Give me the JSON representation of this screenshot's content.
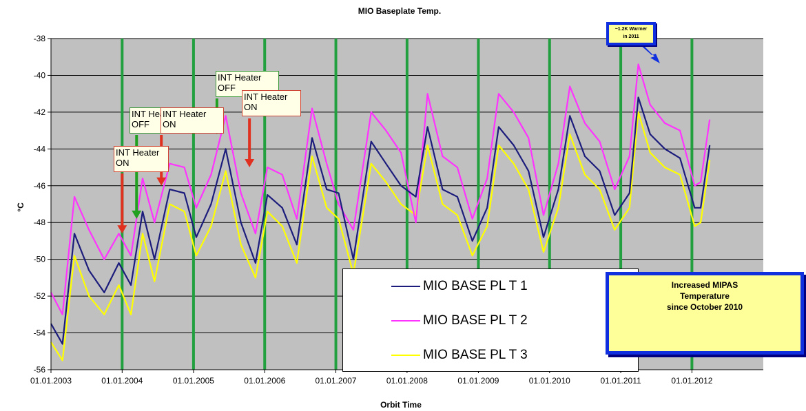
{
  "chart_data": {
    "type": "line",
    "title": "MIO Baseplate Temp.",
    "xlabel": "Orbit Time",
    "ylabel": "°C",
    "ylim": [
      -56,
      -38
    ],
    "yticks": [
      -38,
      -40,
      -42,
      -44,
      -46,
      -48,
      -50,
      -52,
      -54,
      -56
    ],
    "xticks": [
      "01.01.2003",
      "01.01.2004",
      "01.01.2005",
      "01.01.2006",
      "01.01.2007",
      "01.01.2008",
      "01.01.2009",
      "01.01.2010",
      "01.01.2011",
      "01.01.2012"
    ],
    "xlim": [
      "2003-01-01",
      "2013-01-01"
    ],
    "grid": true,
    "colors": {
      "plot_bg": "#c0c0c0",
      "gridline_h": "#000000",
      "gridline_v": "#22a040"
    },
    "series": [
      {
        "name": "MIO BASE PL T 1",
        "color": "#1c1c7c",
        "x": [
          "2003-01-01",
          "2003-03-01",
          "2003-05-01",
          "2003-07-15",
          "2003-10-01",
          "2003-12-15",
          "2004-02-15",
          "2004-04-15",
          "2004-06-15",
          "2004-09-01",
          "2004-11-15",
          "2005-01-15",
          "2005-04-01",
          "2005-06-15",
          "2005-09-01",
          "2005-11-15",
          "2006-01-15",
          "2006-04-01",
          "2006-06-15",
          "2006-09-01",
          "2006-11-15",
          "2007-01-15",
          "2007-04-01",
          "2007-07-01",
          "2007-09-15",
          "2007-12-01",
          "2008-02-15",
          "2008-04-15",
          "2008-07-01",
          "2008-09-15",
          "2008-12-01",
          "2009-02-15",
          "2009-04-15",
          "2009-07-01",
          "2009-09-15",
          "2009-12-01",
          "2010-02-15",
          "2010-04-15",
          "2010-07-01",
          "2010-09-15",
          "2010-12-01",
          "2011-02-15",
          "2011-04-01",
          "2011-06-01",
          "2011-08-15",
          "2011-11-01",
          "2012-01-15",
          "2012-02-15",
          "2012-04-01"
        ],
        "y": [
          -53.5,
          -54.6,
          -48.6,
          -50.6,
          -51.8,
          -50.2,
          -51.4,
          -47.4,
          -50,
          -46.2,
          -46.4,
          -48.8,
          -47,
          -44,
          -48,
          -50.2,
          -46.5,
          -47.2,
          -49.2,
          -43.4,
          -46.2,
          -46.4,
          -50,
          -43.6,
          -44.8,
          -46,
          -46.6,
          -42.8,
          -46.2,
          -46.6,
          -49,
          -47.2,
          -42.8,
          -43.8,
          -45.2,
          -48.8,
          -46.2,
          -42.2,
          -44.4,
          -45.2,
          -47.6,
          -46.4,
          -41.2,
          -43.2,
          -44,
          -44.5,
          -47.2,
          -47.2,
          -43.8
        ]
      },
      {
        "name": "MIO BASE PL T 2",
        "color": "#ff33ff",
        "x": [
          "2003-01-01",
          "2003-03-01",
          "2003-05-01",
          "2003-07-15",
          "2003-10-01",
          "2003-12-15",
          "2004-02-15",
          "2004-04-15",
          "2004-06-15",
          "2004-09-01",
          "2004-11-15",
          "2005-01-15",
          "2005-04-01",
          "2005-06-15",
          "2005-09-01",
          "2005-11-15",
          "2006-01-15",
          "2006-04-01",
          "2006-06-15",
          "2006-09-01",
          "2006-11-15",
          "2007-01-15",
          "2007-04-01",
          "2007-07-01",
          "2007-09-15",
          "2007-12-01",
          "2008-02-15",
          "2008-04-15",
          "2008-07-01",
          "2008-09-15",
          "2008-12-01",
          "2009-02-15",
          "2009-04-15",
          "2009-07-01",
          "2009-09-15",
          "2009-12-01",
          "2010-02-15",
          "2010-04-15",
          "2010-07-01",
          "2010-09-15",
          "2010-12-01",
          "2011-02-15",
          "2011-04-01",
          "2011-06-01",
          "2011-08-15",
          "2011-11-01",
          "2012-01-15",
          "2012-02-15",
          "2012-04-01"
        ],
        "y": [
          -51.8,
          -53,
          -46.6,
          -48.4,
          -50,
          -48.6,
          -49.8,
          -45.6,
          -48,
          -44.8,
          -45,
          -47.2,
          -45.4,
          -42.2,
          -46.4,
          -48.6,
          -45,
          -45.4,
          -47.8,
          -41.8,
          -44.8,
          -47,
          -48.4,
          -42,
          -43,
          -44.2,
          -48,
          -41,
          -44.4,
          -45,
          -47.8,
          -45.6,
          -41,
          -42,
          -43.4,
          -47.6,
          -44.8,
          -40.6,
          -42.6,
          -43.6,
          -46.2,
          -44.4,
          -39.4,
          -41.6,
          -42.6,
          -43,
          -46,
          -45.8,
          -42.4
        ]
      },
      {
        "name": "MIO BASE PL T 3",
        "color": "#ffff00",
        "x": [
          "2003-01-01",
          "2003-03-01",
          "2003-05-01",
          "2003-07-15",
          "2003-10-01",
          "2003-12-15",
          "2004-02-15",
          "2004-04-15",
          "2004-06-15",
          "2004-09-01",
          "2004-11-15",
          "2005-01-15",
          "2005-04-01",
          "2005-06-15",
          "2005-09-01",
          "2005-11-15",
          "2006-01-15",
          "2006-04-01",
          "2006-06-15",
          "2006-09-01",
          "2006-11-15",
          "2007-01-15",
          "2007-04-01",
          "2007-07-01",
          "2007-09-15",
          "2007-12-01",
          "2008-02-15",
          "2008-04-15",
          "2008-07-01",
          "2008-09-15",
          "2008-12-01",
          "2009-02-15",
          "2009-04-15",
          "2009-07-01",
          "2009-09-15",
          "2009-12-01",
          "2010-02-15",
          "2010-04-15",
          "2010-07-01",
          "2010-09-15",
          "2010-12-01",
          "2011-02-15",
          "2011-04-01",
          "2011-06-01",
          "2011-08-15",
          "2011-11-01",
          "2012-01-15",
          "2012-02-15",
          "2012-04-01"
        ],
        "y": [
          -54.5,
          -55.5,
          -49.8,
          -52,
          -53,
          -51.4,
          -53,
          -48.6,
          -51.2,
          -47,
          -47.4,
          -49.8,
          -48.2,
          -45.2,
          -49.2,
          -51,
          -47.4,
          -48.2,
          -50.2,
          -44.4,
          -47.2,
          -47.8,
          -50.8,
          -44.8,
          -45.8,
          -47,
          -47.6,
          -43.8,
          -47,
          -47.6,
          -49.8,
          -48.2,
          -43.8,
          -44.8,
          -46.2,
          -49.6,
          -47.2,
          -43.2,
          -45.4,
          -46.2,
          -48.4,
          -47.2,
          -42,
          -44.2,
          -45,
          -45.4,
          -48.2,
          -48,
          -44.6
        ]
      }
    ],
    "annotations": [
      {
        "id": "int-heater-on-1",
        "text": "INT Heater\nON",
        "arrow_color": "#e03020",
        "x": "2004-01-01",
        "y": -48.6
      },
      {
        "id": "int-heater-off-1",
        "text": "INT Heater\nOFF",
        "arrow_color": "#22a020",
        "x": "2004-03-15",
        "y": -47.8
      },
      {
        "id": "int-heater-on-2",
        "text": "INT Heater\nON",
        "arrow_color": "#e03020",
        "x": "2004-07-20",
        "y": -46
      },
      {
        "id": "int-heater-off-2",
        "text": "INT Heater\nOFF",
        "arrow_color": "#22a020",
        "x": "2005-05-01",
        "y": -43.2
      },
      {
        "id": "int-heater-on-3",
        "text": "INT Heater\nON",
        "arrow_color": "#e03020",
        "x": "2005-10-15",
        "y": -45
      }
    ],
    "callouts": {
      "warmer": "~1.2K Warmer\nin 2011",
      "mipas": "Increased MIPAS\nTemperature\nsince October 2010"
    }
  }
}
